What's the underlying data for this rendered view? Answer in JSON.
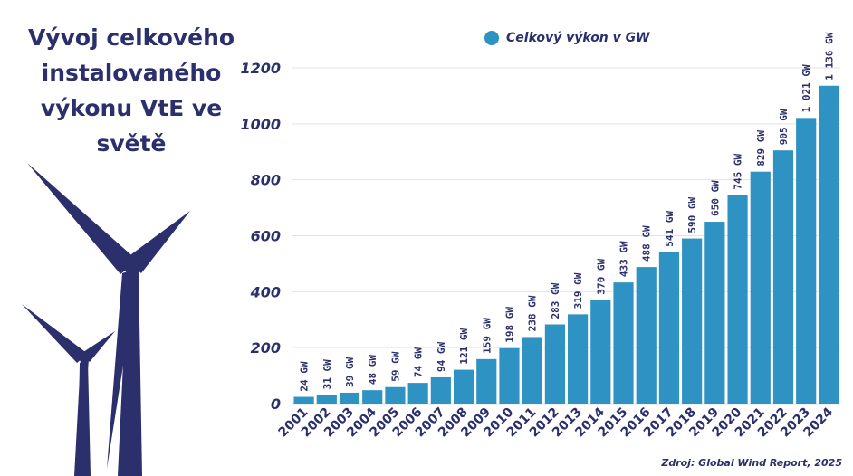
{
  "title_lines": [
    "Vývoj celkového",
    "instalovaného",
    "výkonu VtE ve",
    "světě"
  ],
  "source": "Zdroj: Global Wind Report, 2025",
  "colors": {
    "bar": "#2e92c2",
    "text": "#2b2f6b",
    "turbine": "#2b2f6b",
    "grid": "#e3e3e3"
  },
  "chart_data": {
    "type": "bar",
    "title": "Vývoj celkového instalovaného výkonu VtE ve světě",
    "legend": "Celkový výkon v GW",
    "xlabel": "",
    "ylabel": "",
    "ylim": [
      0,
      1200
    ],
    "yticks": [
      0,
      200,
      400,
      600,
      800,
      1000,
      1200
    ],
    "categories": [
      "2001",
      "2002",
      "2003",
      "2004",
      "2005",
      "2006",
      "2007",
      "2008",
      "2009",
      "2010",
      "2011",
      "2012",
      "2013",
      "2014",
      "2015",
      "2016",
      "2017",
      "2018",
      "2019",
      "2020",
      "2021",
      "2022",
      "2023",
      "2024"
    ],
    "values": [
      24,
      31,
      39,
      48,
      59,
      74,
      94,
      121,
      159,
      198,
      238,
      283,
      319,
      370,
      433,
      488,
      541,
      590,
      650,
      745,
      829,
      905,
      1021,
      1136
    ],
    "labels": [
      "24 GW",
      "31 GW",
      "39 GW",
      "48 GW",
      "59 GW",
      "74 GW",
      "94 GW",
      "121 GW",
      "159 GW",
      "198 GW",
      "238 GW",
      "283 GW",
      "319 GW",
      "370 GW",
      "433 GW",
      "488 GW",
      "541 GW",
      "590 GW",
      "650 GW",
      "745 GW",
      "829 GW",
      "905 GW",
      "1 021 GW",
      "1 136 GW"
    ]
  }
}
